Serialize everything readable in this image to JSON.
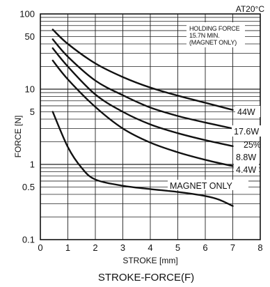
{
  "chart_data": {
    "type": "line",
    "title": "STROKE-FORCE(F)",
    "condition": "AT20°C",
    "xlabel": "STROKE [mm]",
    "ylabel": "FORCE [N]",
    "xlim": [
      0,
      8
    ],
    "ylim": [
      0.1,
      100
    ],
    "yscale": "log",
    "x_ticks": [
      "0",
      "1",
      "2",
      "3",
      "4",
      "5",
      "6",
      "7",
      "8"
    ],
    "y_ticks": [
      "0.1",
      "0.5",
      "1",
      "5",
      "10",
      "50",
      "100"
    ],
    "annotation": [
      "HOLDING FORCE",
      "15.7N MIN.",
      "(MAGNET ONLY)"
    ],
    "grid": true,
    "series": [
      {
        "name": "44W",
        "x": [
          0.45,
          1,
          2,
          3,
          4,
          5,
          6,
          7
        ],
        "y": [
          62,
          40,
          22,
          14.5,
          10.5,
          8.2,
          6.6,
          5.3
        ]
      },
      {
        "name": "17.6W",
        "x": [
          0.45,
          1,
          2,
          3,
          4,
          5,
          6,
          7
        ],
        "y": [
          46,
          27,
          13,
          8.3,
          5.7,
          4.4,
          3.6,
          3.0
        ]
      },
      {
        "name": "8.8W",
        "x": [
          0.45,
          1,
          2,
          3,
          4,
          5,
          6,
          7
        ],
        "y": [
          35,
          20,
          8.5,
          5.0,
          3.4,
          2.6,
          2.1,
          1.75
        ]
      },
      {
        "name": "4.4W",
        "x": [
          0.45,
          1,
          2,
          3,
          4,
          5,
          6,
          7
        ],
        "y": [
          24,
          13.5,
          5.8,
          3.0,
          1.95,
          1.45,
          1.15,
          0.95
        ]
      },
      {
        "name": "MAGNET ONLY",
        "x": [
          0.45,
          1,
          1.5,
          2,
          3,
          4,
          5,
          6,
          6.5,
          7
        ],
        "y": [
          5,
          1.7,
          0.9,
          0.63,
          0.52,
          0.47,
          0.43,
          0.38,
          0.34,
          0.28
        ]
      }
    ],
    "series_note": "25%",
    "colors": {
      "line": "#111111",
      "grid": "#222222",
      "background": "#ffffff"
    }
  }
}
